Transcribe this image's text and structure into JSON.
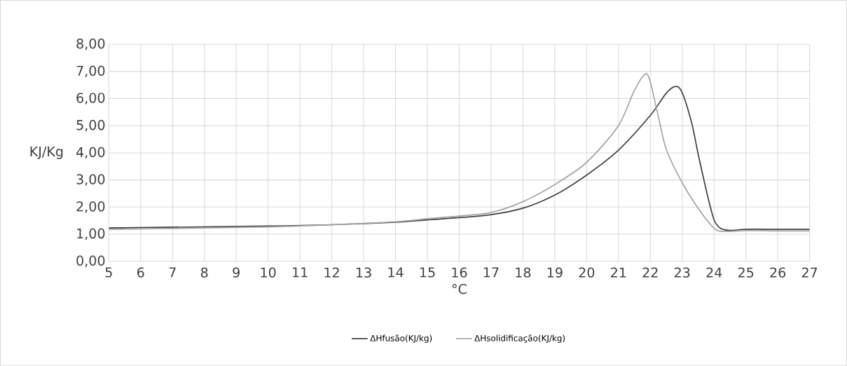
{
  "chart_data": {
    "type": "line",
    "xlabel": "°C",
    "ylabel": "KJ/Kg",
    "xlim": [
      5,
      27
    ],
    "xticks": [
      5,
      6,
      7,
      8,
      9,
      10,
      11,
      12,
      13,
      14,
      15,
      16,
      17,
      18,
      19,
      20,
      21,
      22,
      23,
      24,
      25,
      26,
      27
    ],
    "ylim": [
      0,
      8
    ],
    "yticks": [
      {
        "value": 0,
        "label": "0,00"
      },
      {
        "value": 1,
        "label": "1,00"
      },
      {
        "value": 2,
        "label": "2,00"
      },
      {
        "value": 3,
        "label": "3,00"
      },
      {
        "value": 4,
        "label": "4,00"
      },
      {
        "value": 5,
        "label": "5,00"
      },
      {
        "value": 6,
        "label": "6,00"
      },
      {
        "value": 7,
        "label": "7,00"
      },
      {
        "value": 8,
        "label": "8,00"
      }
    ],
    "grid": true,
    "legend": "bottom",
    "marker": "none",
    "line_style": "solid",
    "series": [
      {
        "name": "ΔHfusão(KJ/kg)",
        "color": "#404040",
        "x": [
          5,
          10,
          12,
          14,
          15,
          16,
          17,
          18,
          19,
          20,
          21,
          22,
          22.5,
          22.8,
          23,
          23.3,
          23.5,
          23.8,
          24,
          24.2,
          24.5,
          25,
          26,
          27
        ],
        "values": [
          1.23,
          1.3,
          1.35,
          1.44,
          1.53,
          1.61,
          1.72,
          1.96,
          2.44,
          3.18,
          4.1,
          5.38,
          6.2,
          6.45,
          6.22,
          5.09,
          3.96,
          2.4,
          1.53,
          1.22,
          1.14,
          1.18,
          1.18,
          1.18
        ]
      },
      {
        "name": "ΔHsolidificação(KJ/kg)",
        "color": "#a6a6a6",
        "x": [
          5,
          10,
          12,
          14,
          15,
          16,
          17,
          18,
          19,
          20,
          21,
          21.5,
          21.9,
          22.2,
          22.5,
          23,
          23.5,
          24,
          24.3,
          25,
          26,
          27
        ],
        "values": [
          1.18,
          1.27,
          1.35,
          1.46,
          1.57,
          1.67,
          1.8,
          2.2,
          2.83,
          3.65,
          5.0,
          6.3,
          6.9,
          5.6,
          4.13,
          2.9,
          1.96,
          1.22,
          1.1,
          1.13,
          1.12,
          1.12
        ]
      }
    ]
  }
}
